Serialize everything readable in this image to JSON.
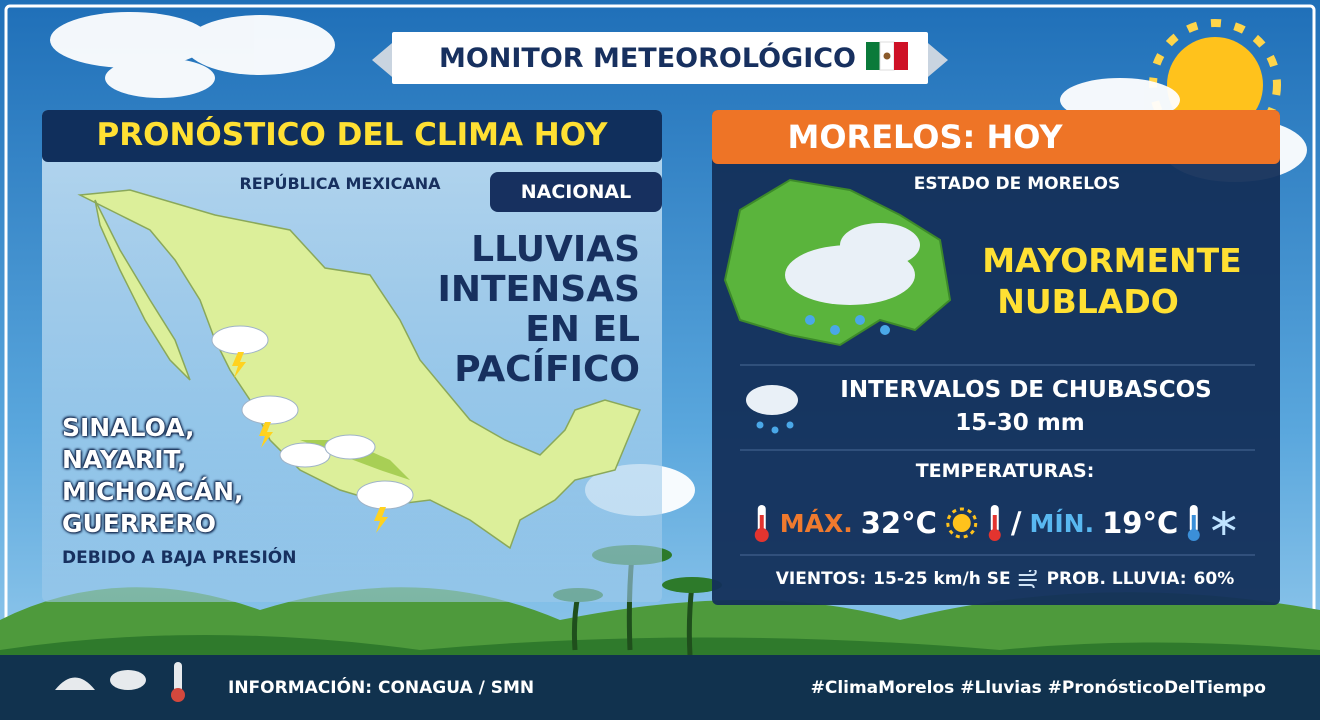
{
  "header": {
    "title": "MONITOR METEOROLÓGICO"
  },
  "left": {
    "title": "PRONÓSTICO DEL CLIMA HOY",
    "subtitle": "REPÚBLICA MEXICANA",
    "badge": "NACIONAL",
    "headline": [
      "LLUVIAS",
      "INTENSAS",
      "EN EL",
      "PACÍFICO"
    ],
    "states": [
      "SINALOA,",
      "NAYARIT,",
      "MICHOACÁN,",
      "GUERRERO"
    ],
    "note": "DEBIDO A BAJA PRESIÓN"
  },
  "right": {
    "title": "MORELOS: HOY",
    "subtitle": "ESTADO DE MORELOS",
    "condition": [
      "MAYORMENTE",
      "NUBLADO"
    ],
    "rain": {
      "label": "INTERVALOS DE CHUBASCOS",
      "amount": "15-30 mm"
    },
    "temperatures": {
      "label": "TEMPERATURAS:",
      "max_label": "MÁX.",
      "max": "32°C",
      "separator": "/",
      "min_label": "MÍN.",
      "min": "19°C"
    },
    "wind": {
      "label": "VIENTOS:",
      "value": "15-25 km/h SE"
    },
    "rain_probability": {
      "label": "PROB. LLUVIA:",
      "value": "60%"
    }
  },
  "footer": {
    "source": "INFORMACIÓN: CONAGUA / SMN",
    "hashtags": "#ClimaMorelos #Lluvias #PronósticoDelTiempo"
  }
}
